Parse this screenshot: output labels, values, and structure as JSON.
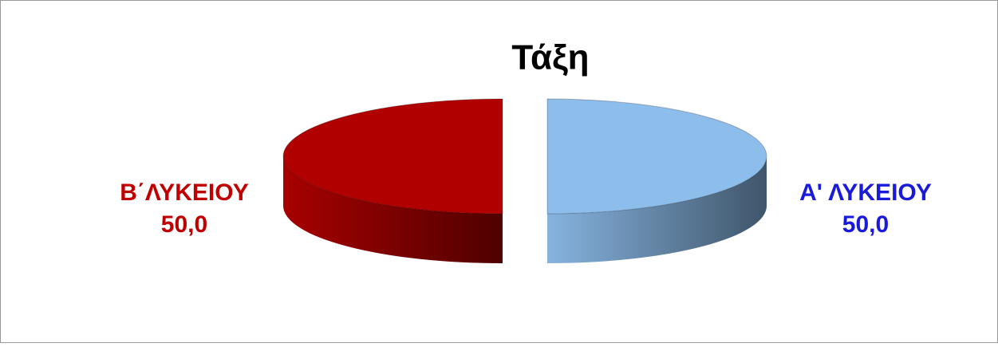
{
  "chart_data": {
    "type": "pie",
    "title": "Τάξη",
    "categories": [
      "Α' ΛΥΚΕΙΟΥ",
      "Β΄ΛΥΚΕΙΟΥ"
    ],
    "values": [
      50,
      50
    ],
    "value_labels": [
      "50,0",
      "50,0"
    ],
    "colors": [
      "#8dbdeb",
      "#b00000"
    ],
    "label_colors": [
      "#1a1adb",
      "#c00000"
    ]
  }
}
